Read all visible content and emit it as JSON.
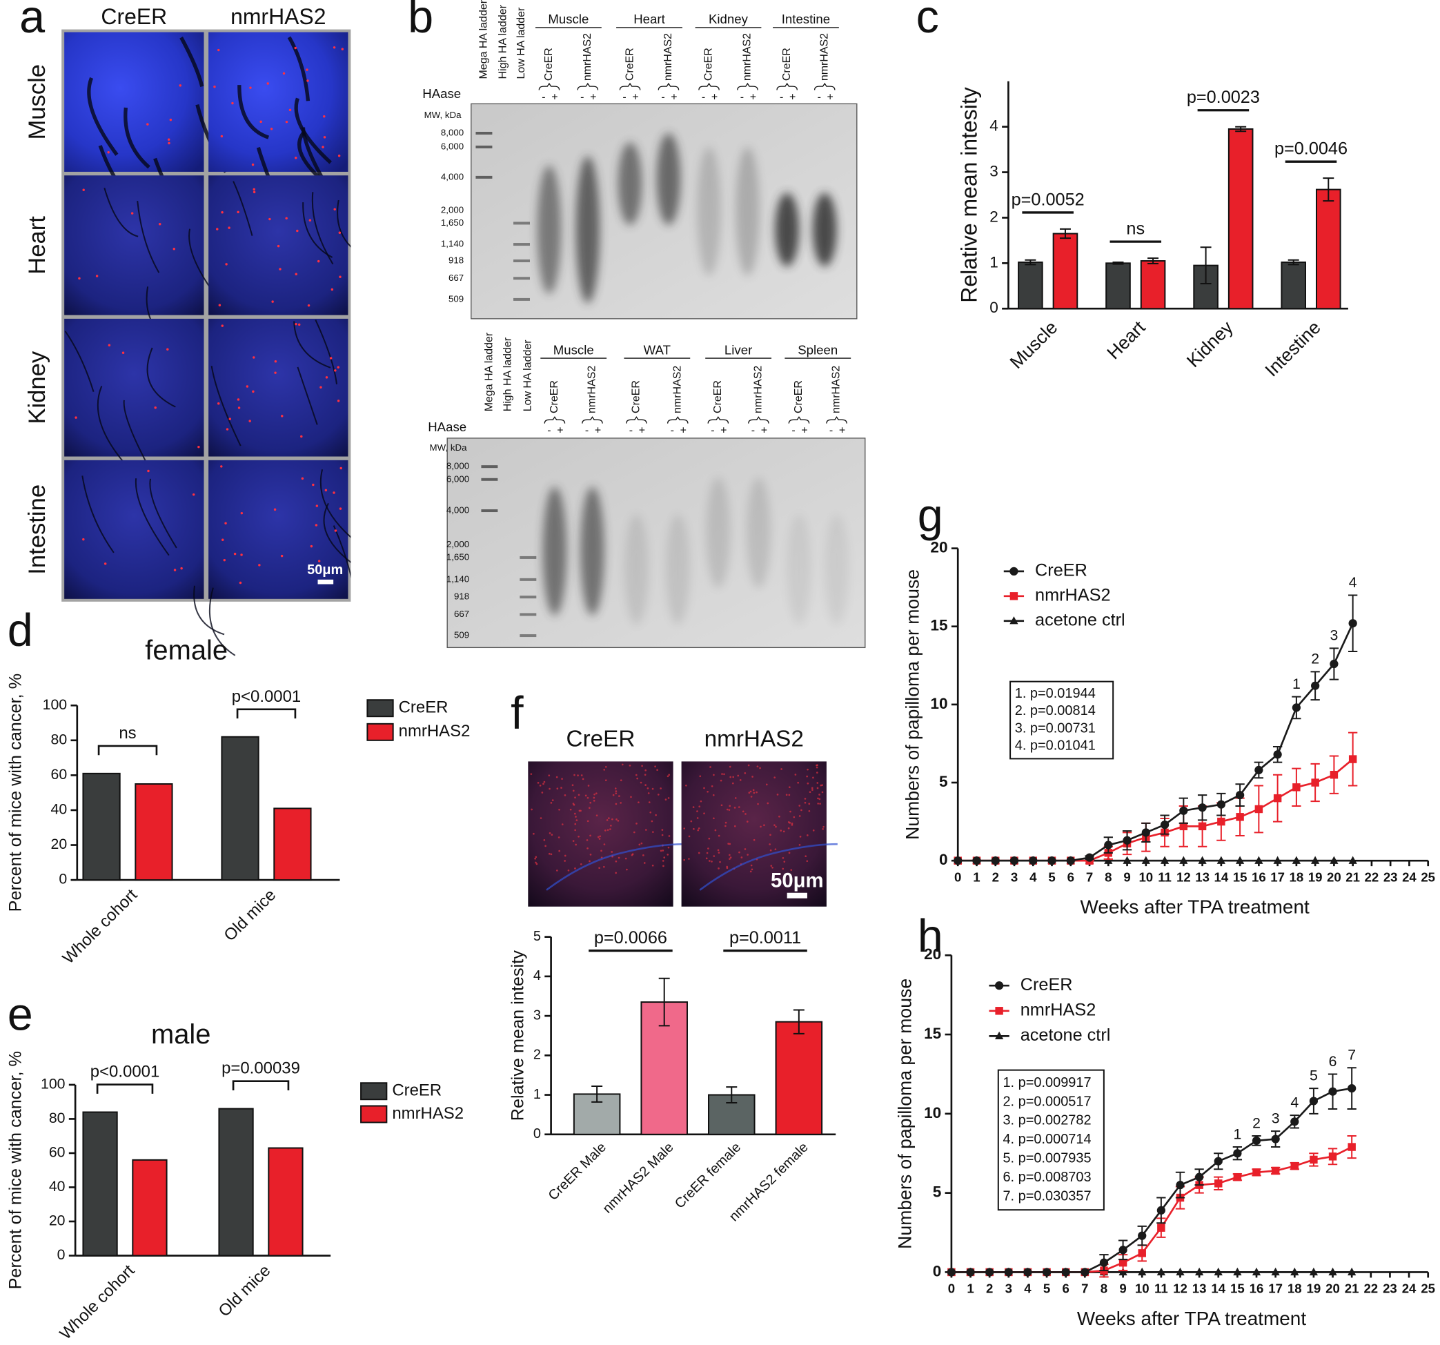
{
  "micrographs": {
    "panel": "a",
    "columns": [
      "CreER",
      "nmrHAS2"
    ],
    "rows": [
      "Muscle",
      "Heart",
      "Kidney",
      "Intestine"
    ],
    "scale_bar": "50μm"
  },
  "gels": {
    "panel": "b",
    "blots": [
      {
        "ladders": [
          "Mega HA ladder",
          "High HA ladder",
          "Low HA ladder"
        ],
        "groups": [
          {
            "name": "Muscle",
            "lanes": [
              "CreER",
              "nmrHAS2"
            ]
          },
          {
            "name": "Heart",
            "lanes": [
              "CreER",
              "nmrHAS2"
            ]
          },
          {
            "name": "Kidney",
            "lanes": [
              "CreER",
              "nmrHAS2"
            ]
          },
          {
            "name": "Intestine",
            "lanes": [
              "CreER",
              "nmrHAS2"
            ]
          }
        ],
        "treatment": "HAase",
        "signs": [
          "-",
          "+"
        ],
        "mw_title": "MW, kDa",
        "mw": [
          "8,000",
          "6,000",
          "4,000",
          "2,000",
          "1,650",
          "1,140",
          "918",
          "667",
          "509"
        ]
      },
      {
        "ladders": [
          "Mega HA ladder",
          "High HA ladder",
          "Low HA ladder"
        ],
        "groups": [
          {
            "name": "Muscle",
            "lanes": [
              "CreER",
              "nmrHAS2"
            ]
          },
          {
            "name": "WAT",
            "lanes": [
              "CreER",
              "nmrHAS2"
            ]
          },
          {
            "name": "Liver",
            "lanes": [
              "CreER",
              "nmrHAS2"
            ]
          },
          {
            "name": "Spleen",
            "lanes": [
              "CreER",
              "nmrHAS2"
            ]
          }
        ],
        "treatment": "HAase",
        "signs": [
          "-",
          "+"
        ],
        "mw_title": "MW, kDa",
        "mw": [
          "8,000",
          "6,000",
          "4,000",
          "2,000",
          "1,650",
          "1,140",
          "918",
          "667",
          "509"
        ]
      }
    ]
  },
  "chart_data": [
    {
      "panel": "c",
      "type": "bar",
      "ylabel": "Relative mean intesity",
      "categories": [
        "Muscle",
        "Heart",
        "Kidney",
        "Intestine"
      ],
      "series": [
        {
          "color": "#3a3d3d",
          "values": [
            1.02,
            1.0,
            0.95,
            1.02
          ],
          "errors": [
            0.05,
            0.02,
            0.4,
            0.05
          ]
        },
        {
          "color": "#e8202a",
          "values": [
            1.65,
            1.05,
            3.95,
            2.62
          ],
          "errors": [
            0.1,
            0.06,
            0.05,
            0.25
          ]
        }
      ],
      "ylim": [
        0,
        5
      ],
      "yticks": [
        0,
        1,
        2,
        3,
        4
      ],
      "annotations": [
        {
          "text": "p=0.0052",
          "category": "Muscle"
        },
        {
          "text": "ns",
          "category": "Heart"
        },
        {
          "text": "p=0.0023",
          "category": "Kidney"
        },
        {
          "text": "p=0.0046",
          "category": "Intestine"
        }
      ]
    },
    {
      "panel": "d",
      "type": "bar",
      "title": "female",
      "ylabel": "Percent of mice with cancer, %",
      "categories": [
        "Whole cohort",
        "Old mice"
      ],
      "series": [
        {
          "name": "CreER",
          "color": "#3a3d3d",
          "values": [
            61,
            82
          ]
        },
        {
          "name": "nmrHAS2",
          "color": "#e8202a",
          "values": [
            55,
            41
          ]
        }
      ],
      "ylim": [
        0,
        100
      ],
      "yticks": [
        0,
        20,
        40,
        60,
        80,
        100
      ],
      "legend": "right",
      "bracket": true,
      "annotations": [
        {
          "text": "ns",
          "category": "Whole cohort"
        },
        {
          "text": "p<0.0001",
          "category": "Old mice"
        }
      ]
    },
    {
      "panel": "e",
      "type": "bar",
      "title": "male",
      "ylabel": "Percent of mice with cancer, %",
      "categories": [
        "Whole cohort",
        "Old mice"
      ],
      "series": [
        {
          "name": "CreER",
          "color": "#3a3d3d",
          "values": [
            84,
            86
          ]
        },
        {
          "name": "nmrHAS2",
          "color": "#e8202a",
          "values": [
            56,
            63
          ]
        }
      ],
      "ylim": [
        0,
        100
      ],
      "yticks": [
        0,
        20,
        40,
        60,
        80,
        100
      ],
      "legend": "right",
      "bracket": true,
      "annotations": [
        {
          "text": "p<0.0001",
          "category": "Whole cohort"
        },
        {
          "text": "p=0.00039",
          "category": "Old mice"
        }
      ]
    },
    {
      "panel": "f",
      "type": "bar",
      "ylabel": "Relative mean intesity",
      "categories": [
        "CreER Male",
        "nmrHAS2 Male",
        "CreER female",
        "nmrHAS2 female"
      ],
      "values": [
        1.02,
        3.35,
        1.0,
        2.85
      ],
      "errors": [
        0.2,
        0.6,
        0.2,
        0.3
      ],
      "colors": [
        "#a2aaa9",
        "#f0698a",
        "#5b6463",
        "#e8202a"
      ],
      "ylim": [
        0,
        5
      ],
      "yticks": [
        0,
        1,
        2,
        3,
        4,
        5
      ],
      "annotations": [
        {
          "text": "p=0.0066",
          "categories": [
            "CreER Male",
            "nmrHAS2 Male"
          ]
        },
        {
          "text": "p=0.0011",
          "categories": [
            "CreER female",
            "nmrHAS2 female"
          ]
        }
      ],
      "image_columns": [
        "CreER",
        "nmrHAS2"
      ],
      "scale_bar": "50μm"
    },
    {
      "panel": "g",
      "type": "line",
      "ylabel": "Numbers of papilloma per mouse",
      "xlabel": "Weeks after TPA treatment",
      "x": [
        0,
        1,
        2,
        3,
        4,
        5,
        6,
        7,
        8,
        9,
        10,
        11,
        12,
        13,
        14,
        15,
        16,
        17,
        18,
        19,
        20,
        21
      ],
      "series": [
        {
          "name": "CreER",
          "color": "#1a1a1a",
          "marker": "circle",
          "values": [
            0,
            0,
            0,
            0,
            0,
            0,
            0,
            0.2,
            1.0,
            1.3,
            1.8,
            2.3,
            3.2,
            3.4,
            3.6,
            4.2,
            5.8,
            6.8,
            9.8,
            11.2,
            12.6,
            15.2
          ],
          "errors": [
            0,
            0,
            0,
            0,
            0,
            0,
            0,
            0.1,
            0.5,
            0.6,
            0.6,
            0.6,
            0.8,
            0.8,
            0.7,
            0.7,
            0.5,
            0.5,
            0.7,
            0.9,
            1.0,
            1.8
          ]
        },
        {
          "name": "nmrHAS2",
          "color": "#e8202a",
          "marker": "square",
          "values": [
            0,
            0,
            0,
            0,
            0,
            0,
            0,
            0,
            0.5,
            1.1,
            1.5,
            1.8,
            2.2,
            2.2,
            2.5,
            2.8,
            3.3,
            4.0,
            4.7,
            5.0,
            5.5,
            6.5
          ],
          "errors": [
            0,
            0,
            0,
            0,
            0,
            0,
            0,
            0,
            0.4,
            0.7,
            0.9,
            0.9,
            1.3,
            1.3,
            1.2,
            1.2,
            1.5,
            1.5,
            1.2,
            1.2,
            1.2,
            1.7
          ]
        },
        {
          "name": "acetone ctrl",
          "color": "#1a1a1a",
          "marker": "triangle",
          "values": [
            0,
            0,
            0,
            0,
            0,
            0,
            0,
            0,
            0,
            0,
            0,
            0,
            0,
            0,
            0,
            0,
            0,
            0,
            0,
            0,
            0,
            0
          ]
        }
      ],
      "xlim": [
        0,
        25
      ],
      "xticks": [
        0,
        1,
        2,
        3,
        4,
        5,
        6,
        7,
        8,
        9,
        10,
        11,
        12,
        13,
        14,
        15,
        16,
        17,
        18,
        19,
        20,
        21,
        22,
        23,
        24,
        25
      ],
      "ylim": [
        0,
        20
      ],
      "yticks": [
        0,
        5,
        10,
        15,
        20
      ],
      "legend": "upper left",
      "annotations": [
        {
          "text": "1",
          "x": 18
        },
        {
          "text": "2",
          "x": 19
        },
        {
          "text": "3",
          "x": 20
        },
        {
          "text": "4",
          "x": 21
        }
      ],
      "stats": [
        "1. p=0.01944",
        "2. p=0.00814",
        "3. p=0.00731",
        "4. p=0.01041"
      ]
    },
    {
      "panel": "h",
      "type": "line",
      "ylabel": "Numbers of papilloma per mouse",
      "xlabel": "Weeks after TPA treatment",
      "x": [
        0,
        1,
        2,
        3,
        4,
        5,
        6,
        7,
        8,
        9,
        10,
        11,
        12,
        13,
        14,
        15,
        16,
        17,
        18,
        19,
        20,
        21
      ],
      "series": [
        {
          "name": "CreER",
          "color": "#1a1a1a",
          "marker": "circle",
          "values": [
            0,
            0,
            0,
            0,
            0,
            0,
            0,
            0,
            0.6,
            1.4,
            2.3,
            3.9,
            5.5,
            6.0,
            7.0,
            7.5,
            8.3,
            8.4,
            9.5,
            10.8,
            11.4,
            11.6
          ],
          "errors": [
            0,
            0,
            0,
            0,
            0,
            0,
            0,
            0,
            0.5,
            0.6,
            0.6,
            0.8,
            0.8,
            0.5,
            0.5,
            0.4,
            0.3,
            0.5,
            0.4,
            0.8,
            1.1,
            1.3
          ]
        },
        {
          "name": "nmrHAS2",
          "color": "#e8202a",
          "marker": "square",
          "values": [
            0,
            0,
            0,
            0,
            0,
            0,
            0,
            0,
            0.1,
            0.6,
            1.2,
            2.8,
            4.7,
            5.5,
            5.6,
            6.0,
            6.3,
            6.4,
            6.7,
            7.1,
            7.3,
            7.9
          ],
          "errors": [
            0,
            0,
            0,
            0,
            0,
            0,
            0,
            0,
            0.4,
            0.5,
            0.5,
            0.6,
            0.7,
            0.5,
            0.4,
            0.2,
            0.2,
            0.2,
            0.2,
            0.4,
            0.5,
            0.7
          ]
        },
        {
          "name": "acetone ctrl",
          "color": "#1a1a1a",
          "marker": "triangle",
          "values": [
            0,
            0,
            0,
            0,
            0,
            0,
            0,
            0,
            0,
            0,
            0,
            0,
            0,
            0,
            0,
            0,
            0,
            0,
            0,
            0,
            0,
            0
          ]
        }
      ],
      "xlim": [
        0,
        25
      ],
      "xticks": [
        0,
        1,
        2,
        3,
        4,
        5,
        6,
        7,
        8,
        9,
        10,
        11,
        12,
        13,
        14,
        15,
        16,
        17,
        18,
        19,
        20,
        21,
        22,
        23,
        24,
        25
      ],
      "ylim": [
        0,
        20
      ],
      "yticks": [
        0,
        5,
        10,
        15,
        20
      ],
      "legend": "upper left",
      "annotations": [
        {
          "text": "1",
          "x": 15
        },
        {
          "text": "2",
          "x": 16
        },
        {
          "text": "3",
          "x": 17
        },
        {
          "text": "4",
          "x": 18
        },
        {
          "text": "5",
          "x": 19
        },
        {
          "text": "6",
          "x": 20
        },
        {
          "text": "7",
          "x": 21
        }
      ],
      "stats": [
        "1. p=0.009917",
        "2. p=0.000517",
        "3. p=0.002782",
        "4. p=0.000714",
        "5. p=0.007935",
        "6. p=0.008703",
        "7. p=0.030357"
      ]
    }
  ]
}
